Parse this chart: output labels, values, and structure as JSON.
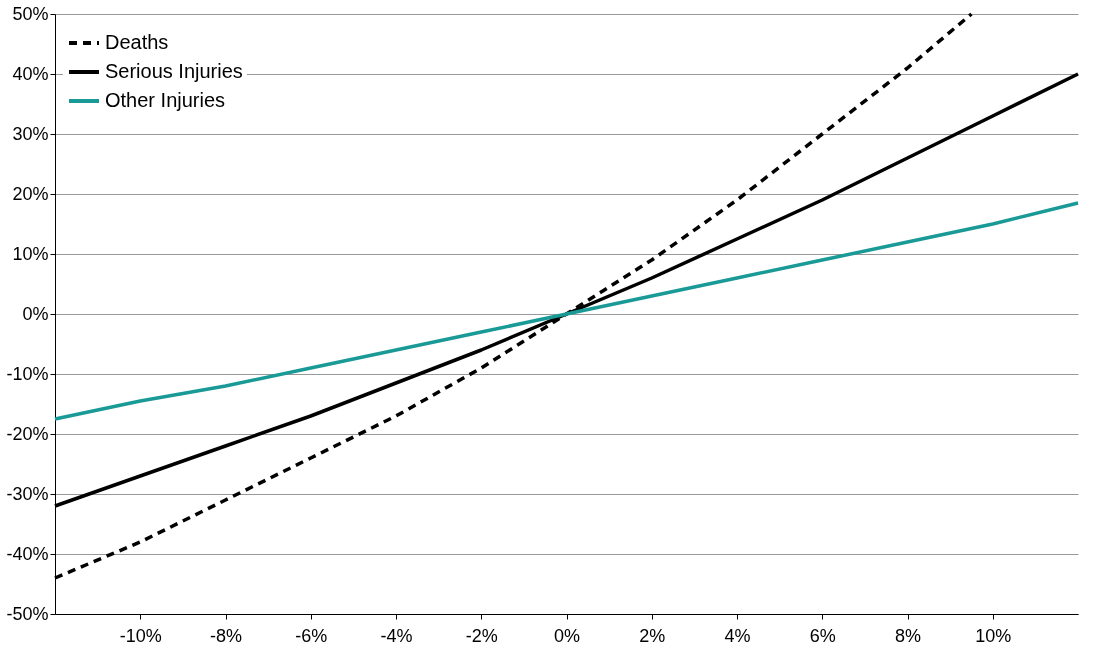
{
  "chart_data": {
    "type": "line",
    "xlim": [
      -12,
      12
    ],
    "ylim": [
      -50,
      50
    ],
    "xticks": [
      {
        "value": -10,
        "label": "-10%"
      },
      {
        "value": -8,
        "label": "-8%"
      },
      {
        "value": -6,
        "label": "-6%"
      },
      {
        "value": -4,
        "label": "-4%"
      },
      {
        "value": -2,
        "label": "-2%"
      },
      {
        "value": 0,
        "label": "0%"
      },
      {
        "value": 2,
        "label": "2%"
      },
      {
        "value": 4,
        "label": "4%"
      },
      {
        "value": 6,
        "label": "6%"
      },
      {
        "value": 8,
        "label": "8%"
      },
      {
        "value": 10,
        "label": "10%"
      }
    ],
    "yticks": [
      {
        "value": -50,
        "label": "-50%"
      },
      {
        "value": -40,
        "label": "-40%"
      },
      {
        "value": -30,
        "label": "-30%"
      },
      {
        "value": -20,
        "label": "-20%"
      },
      {
        "value": -10,
        "label": "-10%"
      },
      {
        "value": 0,
        "label": "0%"
      },
      {
        "value": 10,
        "label": "10%"
      },
      {
        "value": 20,
        "label": "20%"
      },
      {
        "value": 30,
        "label": "30%"
      },
      {
        "value": 40,
        "label": "40%"
      },
      {
        "value": 50,
        "label": "50%"
      }
    ],
    "grid": "y",
    "legend": "top left",
    "marker": "none",
    "series": [
      {
        "name": "Deaths",
        "color": "#000000",
        "line_style": "dashed",
        "x": [
          -12,
          -10,
          -8,
          -6,
          -4,
          -2,
          0,
          2,
          4,
          6,
          8,
          9.5
        ],
        "values": [
          -44,
          -38,
          -31,
          -24,
          -17,
          -9,
          0,
          9,
          19,
          30,
          41,
          50
        ]
      },
      {
        "name": "Serious Injuries",
        "color": "#000000",
        "line_style": "solid",
        "x": [
          -12,
          -10,
          -8,
          -6,
          -4,
          -2,
          0,
          2,
          4,
          6,
          8,
          10,
          12
        ],
        "values": [
          -32,
          -27,
          -22,
          -17,
          -11.5,
          -6,
          0,
          6,
          12.5,
          19,
          26,
          33,
          40
        ]
      },
      {
        "name": "Other Injuries",
        "color": "#1a9a96",
        "line_style": "solid",
        "x": [
          -12,
          -10,
          -8,
          -6,
          -4,
          -2,
          0,
          2,
          4,
          6,
          8,
          10,
          12
        ],
        "values": [
          -17.5,
          -14.5,
          -12,
          -9,
          -6,
          -3,
          0,
          3,
          6,
          9,
          12,
          15,
          18.5
        ]
      }
    ]
  }
}
